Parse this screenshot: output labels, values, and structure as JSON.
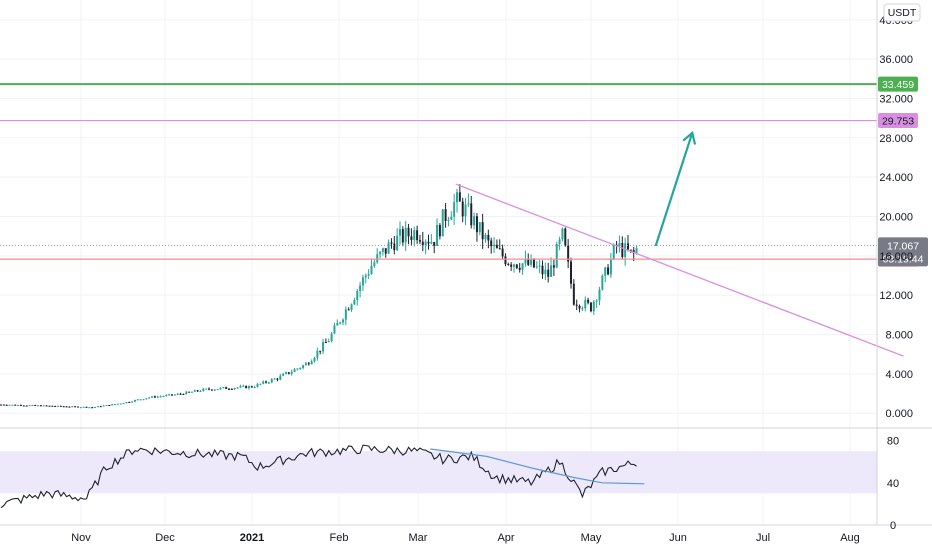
{
  "currency_label": "USDT",
  "countdown": "03:19:44",
  "colors": {
    "up": "#26a69a",
    "down": "#1e222d",
    "green_level": "#4caf50",
    "violet_level": "#d98fe0",
    "red_level": "#f28d8d",
    "trendline": "#d98fe0",
    "arrow": "#26a69a",
    "rsi_line": "#1e222d",
    "rsi_ma": "#5b9bd5",
    "rsi_band": "#ede9fb",
    "grid": "#f0f3fa",
    "axis_text": "#131722"
  },
  "chart_data": [
    {
      "type": "candlestick",
      "title": "",
      "x_ticks": [
        "Nov",
        "Dec",
        "2021",
        "Feb",
        "Mar",
        "Apr",
        "May",
        "Jun",
        "Jul",
        "Aug"
      ],
      "y_ticks": [
        "0.000",
        "4.000",
        "8.000",
        "12.000",
        "16.000",
        "20.000",
        "24.000",
        "28.000",
        "32.000",
        "36.000",
        "40.000"
      ],
      "ylim": [
        -1.2,
        41.5
      ],
      "price_path": [
        [
          "2020-10-01",
          0.9
        ],
        [
          "2020-10-20",
          0.75
        ],
        [
          "2020-11-05",
          0.6
        ],
        [
          "2020-11-15",
          1.0
        ],
        [
          "2020-11-25",
          1.6
        ],
        [
          "2020-12-05",
          1.9
        ],
        [
          "2020-12-15",
          2.4
        ],
        [
          "2020-12-25",
          2.6
        ],
        [
          "2021-01-01",
          2.7
        ],
        [
          "2021-01-10",
          3.6
        ],
        [
          "2021-01-20",
          5.0
        ],
        [
          "2021-01-28",
          7.5
        ],
        [
          "2021-02-05",
          11.5
        ],
        [
          "2021-02-12",
          15.0
        ],
        [
          "2021-02-20",
          17.5
        ],
        [
          "2021-02-28",
          18.5
        ],
        [
          "2021-03-06",
          17.5
        ],
        [
          "2021-03-10",
          20.0
        ],
        [
          "2021-03-14",
          21.5
        ],
        [
          "2021-03-18",
          20.5
        ],
        [
          "2021-03-26",
          17.0
        ],
        [
          "2021-04-02",
          15.5
        ],
        [
          "2021-04-10",
          15.0
        ],
        [
          "2021-04-16",
          14.0
        ],
        [
          "2021-04-21",
          18.0
        ],
        [
          "2021-04-25",
          11.5
        ],
        [
          "2021-05-01",
          10.8
        ],
        [
          "2021-05-06",
          14.0
        ],
        [
          "2021-05-10",
          17.0
        ],
        [
          "2021-05-16",
          16.0
        ],
        [
          "2021-05-18",
          17.07
        ]
      ],
      "levels": [
        {
          "name": "resistance",
          "value": 33.459,
          "label": "33.459",
          "color": "#4caf50"
        },
        {
          "name": "target",
          "value": 29.753,
          "label": "29.753",
          "color": "#d98fe0"
        },
        {
          "name": "support",
          "value": 15.664,
          "label": "15.664",
          "color": "#f28d8d"
        }
      ],
      "last_price": {
        "value": 17.067,
        "label": "17.067"
      },
      "trendline": {
        "from": [
          "2021-03-14",
          23.3
        ],
        "to": [
          "2021-08-20",
          5.8
        ]
      },
      "projection_arrow": {
        "from": [
          "2021-05-24",
          17.0
        ],
        "to": [
          "2021-06-06",
          28.5
        ]
      }
    },
    {
      "type": "line",
      "title": "",
      "y_ticks": [
        "0",
        "40",
        "80"
      ],
      "ylim": [
        0,
        90
      ],
      "band": [
        30,
        70
      ],
      "rsi_path": [
        [
          "2020-10-01",
          18
        ],
        [
          "2020-10-20",
          30
        ],
        [
          "2020-11-03",
          25
        ],
        [
          "2020-11-10",
          55
        ],
        [
          "2020-11-20",
          72
        ],
        [
          "2020-12-10",
          68
        ],
        [
          "2020-12-28",
          65
        ],
        [
          "2021-01-03",
          55
        ],
        [
          "2021-01-20",
          68
        ],
        [
          "2021-02-10",
          72
        ],
        [
          "2021-02-28",
          70
        ],
        [
          "2021-03-10",
          62
        ],
        [
          "2021-03-20",
          65
        ],
        [
          "2021-03-28",
          45
        ],
        [
          "2021-04-10",
          40
        ],
        [
          "2021-04-20",
          60
        ],
        [
          "2021-04-28",
          28
        ],
        [
          "2021-05-05",
          50
        ],
        [
          "2021-05-18",
          60
        ]
      ],
      "rsi_ma_path": [
        [
          "2021-03-05",
          72
        ],
        [
          "2021-03-25",
          65
        ],
        [
          "2021-04-10",
          54
        ],
        [
          "2021-04-25",
          45
        ],
        [
          "2021-05-05",
          40
        ],
        [
          "2021-05-20",
          39
        ]
      ]
    }
  ]
}
